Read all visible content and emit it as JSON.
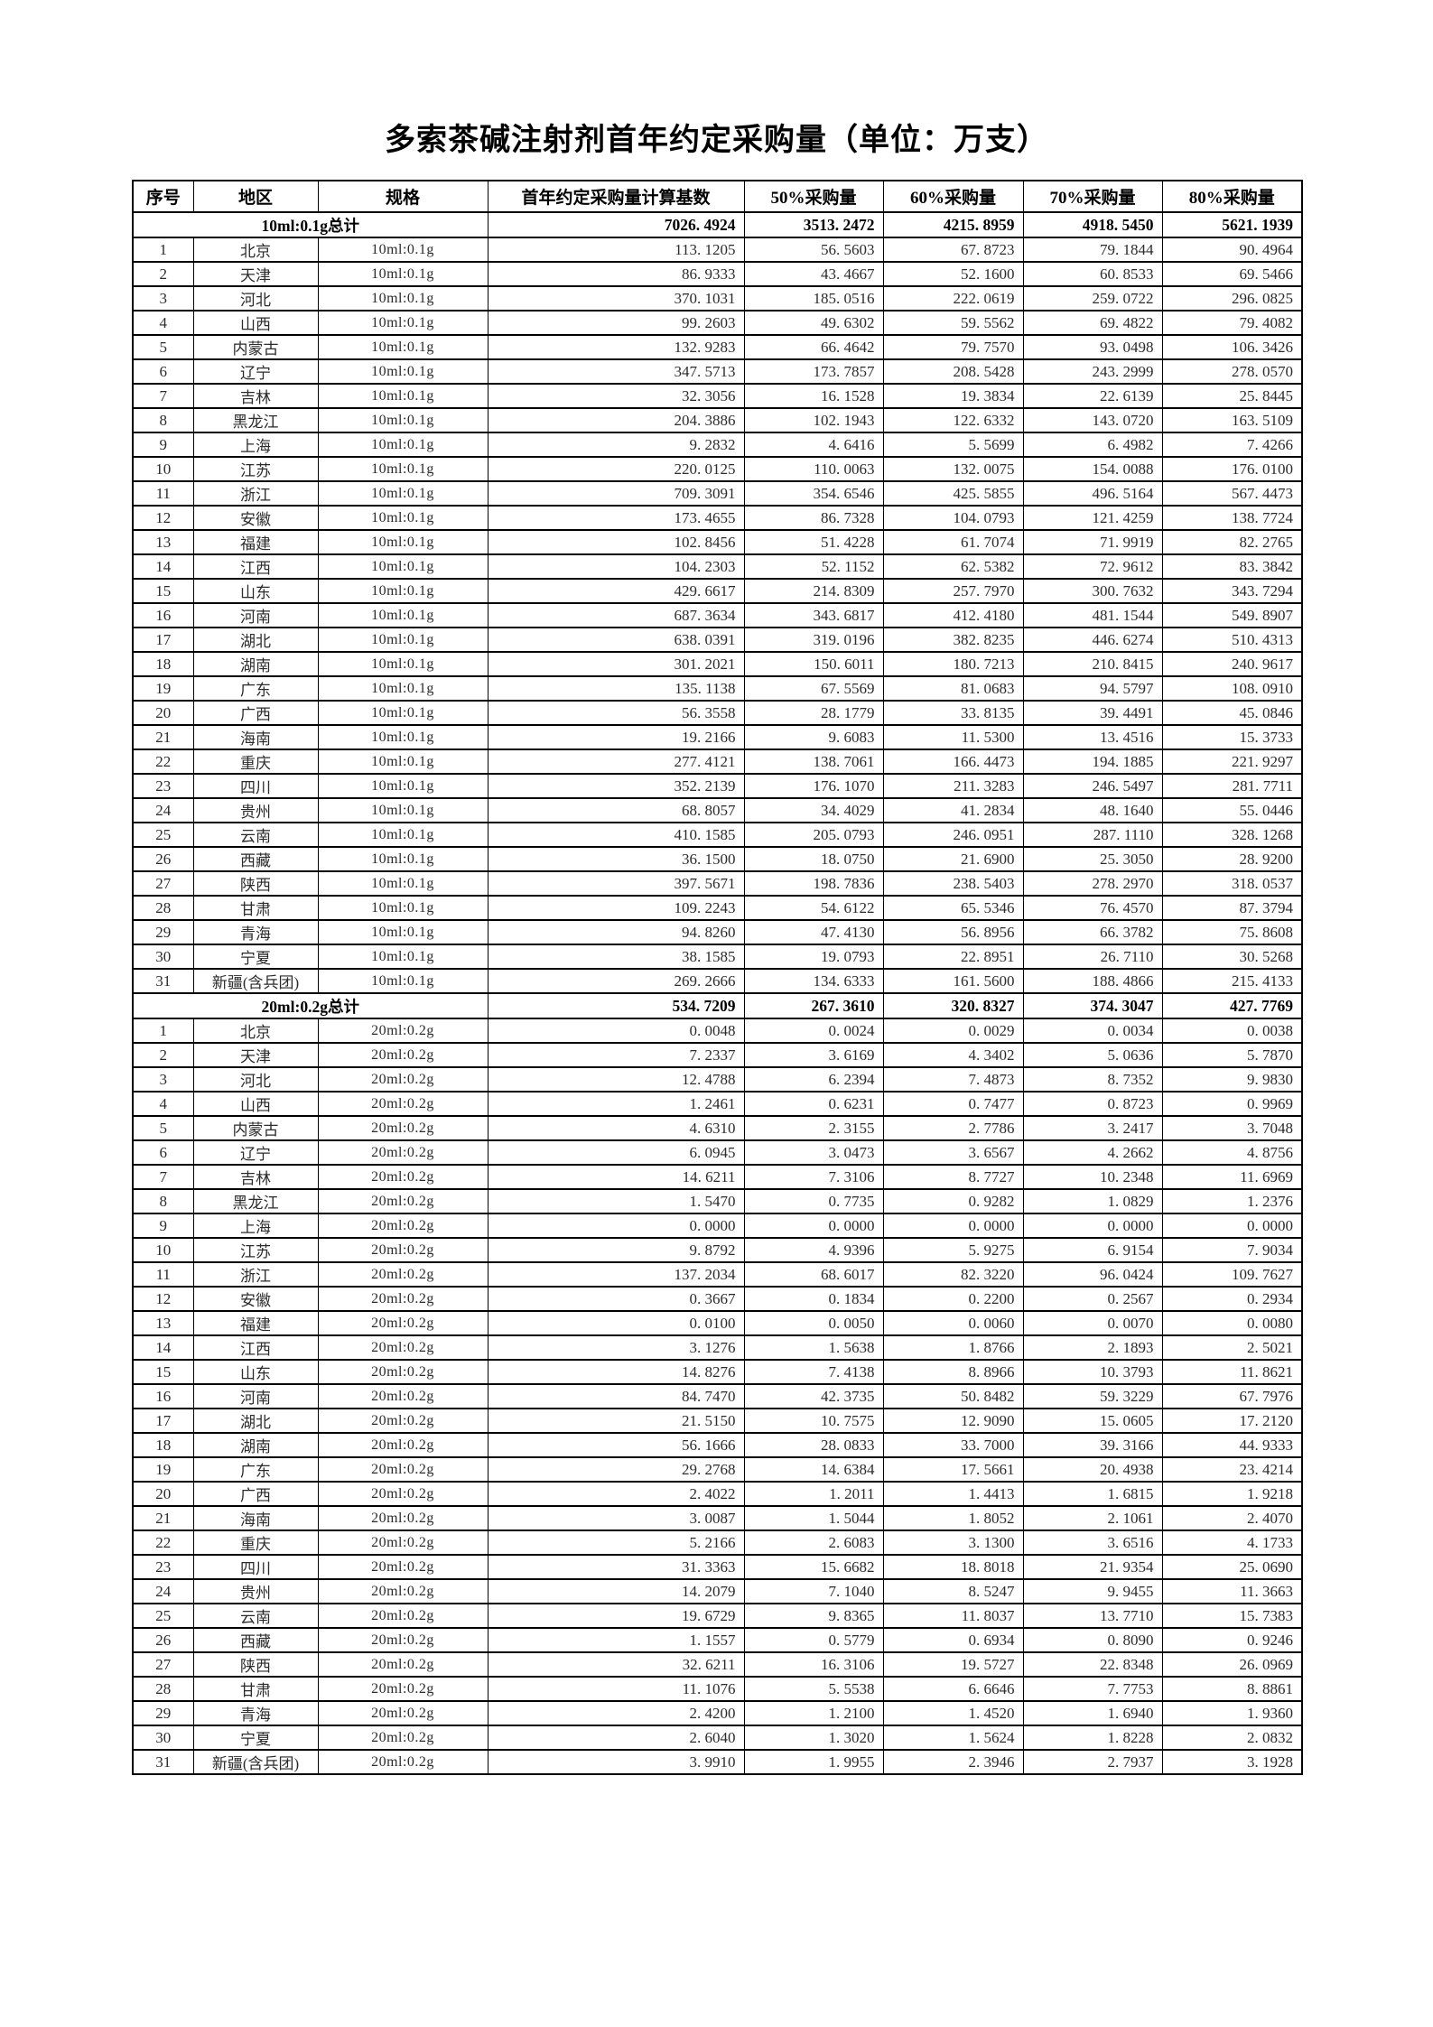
{
  "title": "多索茶碱注射剂首年约定采购量（单位：万支）",
  "table": {
    "headers": [
      "序号",
      "地区",
      "规格",
      "首年约定采购量计算基数",
      "50%采购量",
      "60%采购量",
      "70%采购量",
      "80%采购量"
    ],
    "sections": [
      {
        "total_row": {
          "label": "10ml:0.1g总计",
          "values": [
            "7026.4924",
            "3513.2472",
            "4215.8959",
            "4918.5450",
            "5621.1939"
          ]
        },
        "rows": [
          {
            "no": "1",
            "region": "北京",
            "spec": "10ml:0.1g",
            "values": [
              "113.1205",
              "56.5603",
              "67.8723",
              "79.1844",
              "90.4964"
            ]
          },
          {
            "no": "2",
            "region": "天津",
            "spec": "10ml:0.1g",
            "values": [
              "86.9333",
              "43.4667",
              "52.1600",
              "60.8533",
              "69.5466"
            ]
          },
          {
            "no": "3",
            "region": "河北",
            "spec": "10ml:0.1g",
            "values": [
              "370.1031",
              "185.0516",
              "222.0619",
              "259.0722",
              "296.0825"
            ]
          },
          {
            "no": "4",
            "region": "山西",
            "spec": "10ml:0.1g",
            "values": [
              "99.2603",
              "49.6302",
              "59.5562",
              "69.4822",
              "79.4082"
            ]
          },
          {
            "no": "5",
            "region": "内蒙古",
            "spec": "10ml:0.1g",
            "values": [
              "132.9283",
              "66.4642",
              "79.7570",
              "93.0498",
              "106.3426"
            ]
          },
          {
            "no": "6",
            "region": "辽宁",
            "spec": "10ml:0.1g",
            "values": [
              "347.5713",
              "173.7857",
              "208.5428",
              "243.2999",
              "278.0570"
            ]
          },
          {
            "no": "7",
            "region": "吉林",
            "spec": "10ml:0.1g",
            "values": [
              "32.3056",
              "16.1528",
              "19.3834",
              "22.6139",
              "25.8445"
            ]
          },
          {
            "no": "8",
            "region": "黑龙江",
            "spec": "10ml:0.1g",
            "values": [
              "204.3886",
              "102.1943",
              "122.6332",
              "143.0720",
              "163.5109"
            ]
          },
          {
            "no": "9",
            "region": "上海",
            "spec": "10ml:0.1g",
            "values": [
              "9.2832",
              "4.6416",
              "5.5699",
              "6.4982",
              "7.4266"
            ]
          },
          {
            "no": "10",
            "region": "江苏",
            "spec": "10ml:0.1g",
            "values": [
              "220.0125",
              "110.0063",
              "132.0075",
              "154.0088",
              "176.0100"
            ]
          },
          {
            "no": "11",
            "region": "浙江",
            "spec": "10ml:0.1g",
            "values": [
              "709.3091",
              "354.6546",
              "425.5855",
              "496.5164",
              "567.4473"
            ]
          },
          {
            "no": "12",
            "region": "安徽",
            "spec": "10ml:0.1g",
            "values": [
              "173.4655",
              "86.7328",
              "104.0793",
              "121.4259",
              "138.7724"
            ]
          },
          {
            "no": "13",
            "region": "福建",
            "spec": "10ml:0.1g",
            "values": [
              "102.8456",
              "51.4228",
              "61.7074",
              "71.9919",
              "82.2765"
            ]
          },
          {
            "no": "14",
            "region": "江西",
            "spec": "10ml:0.1g",
            "values": [
              "104.2303",
              "52.1152",
              "62.5382",
              "72.9612",
              "83.3842"
            ]
          },
          {
            "no": "15",
            "region": "山东",
            "spec": "10ml:0.1g",
            "values": [
              "429.6617",
              "214.8309",
              "257.7970",
              "300.7632",
              "343.7294"
            ]
          },
          {
            "no": "16",
            "region": "河南",
            "spec": "10ml:0.1g",
            "values": [
              "687.3634",
              "343.6817",
              "412.4180",
              "481.1544",
              "549.8907"
            ]
          },
          {
            "no": "17",
            "region": "湖北",
            "spec": "10ml:0.1g",
            "values": [
              "638.0391",
              "319.0196",
              "382.8235",
              "446.6274",
              "510.4313"
            ]
          },
          {
            "no": "18",
            "region": "湖南",
            "spec": "10ml:0.1g",
            "values": [
              "301.2021",
              "150.6011",
              "180.7213",
              "210.8415",
              "240.9617"
            ]
          },
          {
            "no": "19",
            "region": "广东",
            "spec": "10ml:0.1g",
            "values": [
              "135.1138",
              "67.5569",
              "81.0683",
              "94.5797",
              "108.0910"
            ]
          },
          {
            "no": "20",
            "region": "广西",
            "spec": "10ml:0.1g",
            "values": [
              "56.3558",
              "28.1779",
              "33.8135",
              "39.4491",
              "45.0846"
            ]
          },
          {
            "no": "21",
            "region": "海南",
            "spec": "10ml:0.1g",
            "values": [
              "19.2166",
              "9.6083",
              "11.5300",
              "13.4516",
              "15.3733"
            ]
          },
          {
            "no": "22",
            "region": "重庆",
            "spec": "10ml:0.1g",
            "values": [
              "277.4121",
              "138.7061",
              "166.4473",
              "194.1885",
              "221.9297"
            ]
          },
          {
            "no": "23",
            "region": "四川",
            "spec": "10ml:0.1g",
            "values": [
              "352.2139",
              "176.1070",
              "211.3283",
              "246.5497",
              "281.7711"
            ]
          },
          {
            "no": "24",
            "region": "贵州",
            "spec": "10ml:0.1g",
            "values": [
              "68.8057",
              "34.4029",
              "41.2834",
              "48.1640",
              "55.0446"
            ]
          },
          {
            "no": "25",
            "region": "云南",
            "spec": "10ml:0.1g",
            "values": [
              "410.1585",
              "205.0793",
              "246.0951",
              "287.1110",
              "328.1268"
            ]
          },
          {
            "no": "26",
            "region": "西藏",
            "spec": "10ml:0.1g",
            "values": [
              "36.1500",
              "18.0750",
              "21.6900",
              "25.3050",
              "28.9200"
            ]
          },
          {
            "no": "27",
            "region": "陕西",
            "spec": "10ml:0.1g",
            "values": [
              "397.5671",
              "198.7836",
              "238.5403",
              "278.2970",
              "318.0537"
            ]
          },
          {
            "no": "28",
            "region": "甘肃",
            "spec": "10ml:0.1g",
            "values": [
              "109.2243",
              "54.6122",
              "65.5346",
              "76.4570",
              "87.3794"
            ]
          },
          {
            "no": "29",
            "region": "青海",
            "spec": "10ml:0.1g",
            "values": [
              "94.8260",
              "47.4130",
              "56.8956",
              "66.3782",
              "75.8608"
            ]
          },
          {
            "no": "30",
            "region": "宁夏",
            "spec": "10ml:0.1g",
            "values": [
              "38.1585",
              "19.0793",
              "22.8951",
              "26.7110",
              "30.5268"
            ]
          },
          {
            "no": "31",
            "region": "新疆(含兵团)",
            "spec": "10ml:0.1g",
            "values": [
              "269.2666",
              "134.6333",
              "161.5600",
              "188.4866",
              "215.4133"
            ]
          }
        ]
      },
      {
        "total_row": {
          "label": "20ml:0.2g总计",
          "values": [
            "534.7209",
            "267.3610",
            "320.8327",
            "374.3047",
            "427.7769"
          ]
        },
        "rows": [
          {
            "no": "1",
            "region": "北京",
            "spec": "20ml:0.2g",
            "values": [
              "0.0048",
              "0.0024",
              "0.0029",
              "0.0034",
              "0.0038"
            ]
          },
          {
            "no": "2",
            "region": "天津",
            "spec": "20ml:0.2g",
            "values": [
              "7.2337",
              "3.6169",
              "4.3402",
              "5.0636",
              "5.7870"
            ]
          },
          {
            "no": "3",
            "region": "河北",
            "spec": "20ml:0.2g",
            "values": [
              "12.4788",
              "6.2394",
              "7.4873",
              "8.7352",
              "9.9830"
            ]
          },
          {
            "no": "4",
            "region": "山西",
            "spec": "20ml:0.2g",
            "values": [
              "1.2461",
              "0.6231",
              "0.7477",
              "0.8723",
              "0.9969"
            ]
          },
          {
            "no": "5",
            "region": "内蒙古",
            "spec": "20ml:0.2g",
            "values": [
              "4.6310",
              "2.3155",
              "2.7786",
              "3.2417",
              "3.7048"
            ]
          },
          {
            "no": "6",
            "region": "辽宁",
            "spec": "20ml:0.2g",
            "values": [
              "6.0945",
              "3.0473",
              "3.6567",
              "4.2662",
              "4.8756"
            ]
          },
          {
            "no": "7",
            "region": "吉林",
            "spec": "20ml:0.2g",
            "values": [
              "14.6211",
              "7.3106",
              "8.7727",
              "10.2348",
              "11.6969"
            ]
          },
          {
            "no": "8",
            "region": "黑龙江",
            "spec": "20ml:0.2g",
            "values": [
              "1.5470",
              "0.7735",
              "0.9282",
              "1.0829",
              "1.2376"
            ]
          },
          {
            "no": "9",
            "region": "上海",
            "spec": "20ml:0.2g",
            "values": [
              "0.0000",
              "0.0000",
              "0.0000",
              "0.0000",
              "0.0000"
            ]
          },
          {
            "no": "10",
            "region": "江苏",
            "spec": "20ml:0.2g",
            "values": [
              "9.8792",
              "4.9396",
              "5.9275",
              "6.9154",
              "7.9034"
            ]
          },
          {
            "no": "11",
            "region": "浙江",
            "spec": "20ml:0.2g",
            "values": [
              "137.2034",
              "68.6017",
              "82.3220",
              "96.0424",
              "109.7627"
            ]
          },
          {
            "no": "12",
            "region": "安徽",
            "spec": "20ml:0.2g",
            "values": [
              "0.3667",
              "0.1834",
              "0.2200",
              "0.2567",
              "0.2934"
            ]
          },
          {
            "no": "13",
            "region": "福建",
            "spec": "20ml:0.2g",
            "values": [
              "0.0100",
              "0.0050",
              "0.0060",
              "0.0070",
              "0.0080"
            ]
          },
          {
            "no": "14",
            "region": "江西",
            "spec": "20ml:0.2g",
            "values": [
              "3.1276",
              "1.5638",
              "1.8766",
              "2.1893",
              "2.5021"
            ]
          },
          {
            "no": "15",
            "region": "山东",
            "spec": "20ml:0.2g",
            "values": [
              "14.8276",
              "7.4138",
              "8.8966",
              "10.3793",
              "11.8621"
            ]
          },
          {
            "no": "16",
            "region": "河南",
            "spec": "20ml:0.2g",
            "values": [
              "84.7470",
              "42.3735",
              "50.8482",
              "59.3229",
              "67.7976"
            ]
          },
          {
            "no": "17",
            "region": "湖北",
            "spec": "20ml:0.2g",
            "values": [
              "21.5150",
              "10.7575",
              "12.9090",
              "15.0605",
              "17.2120"
            ]
          },
          {
            "no": "18",
            "region": "湖南",
            "spec": "20ml:0.2g",
            "values": [
              "56.1666",
              "28.0833",
              "33.7000",
              "39.3166",
              "44.9333"
            ]
          },
          {
            "no": "19",
            "region": "广东",
            "spec": "20ml:0.2g",
            "values": [
              "29.2768",
              "14.6384",
              "17.5661",
              "20.4938",
              "23.4214"
            ]
          },
          {
            "no": "20",
            "region": "广西",
            "spec": "20ml:0.2g",
            "values": [
              "2.4022",
              "1.2011",
              "1.4413",
              "1.6815",
              "1.9218"
            ]
          },
          {
            "no": "21",
            "region": "海南",
            "spec": "20ml:0.2g",
            "values": [
              "3.0087",
              "1.5044",
              "1.8052",
              "2.1061",
              "2.4070"
            ]
          },
          {
            "no": "22",
            "region": "重庆",
            "spec": "20ml:0.2g",
            "values": [
              "5.2166",
              "2.6083",
              "3.1300",
              "3.6516",
              "4.1733"
            ]
          },
          {
            "no": "23",
            "region": "四川",
            "spec": "20ml:0.2g",
            "values": [
              "31.3363",
              "15.6682",
              "18.8018",
              "21.9354",
              "25.0690"
            ]
          },
          {
            "no": "24",
            "region": "贵州",
            "spec": "20ml:0.2g",
            "values": [
              "14.2079",
              "7.1040",
              "8.5247",
              "9.9455",
              "11.3663"
            ]
          },
          {
            "no": "25",
            "region": "云南",
            "spec": "20ml:0.2g",
            "values": [
              "19.6729",
              "9.8365",
              "11.8037",
              "13.7710",
              "15.7383"
            ]
          },
          {
            "no": "26",
            "region": "西藏",
            "spec": "20ml:0.2g",
            "values": [
              "1.1557",
              "0.5779",
              "0.6934",
              "0.8090",
              "0.9246"
            ]
          },
          {
            "no": "27",
            "region": "陕西",
            "spec": "20ml:0.2g",
            "values": [
              "32.6211",
              "16.3106",
              "19.5727",
              "22.8348",
              "26.0969"
            ]
          },
          {
            "no": "28",
            "region": "甘肃",
            "spec": "20ml:0.2g",
            "values": [
              "11.1076",
              "5.5538",
              "6.6646",
              "7.7753",
              "8.8861"
            ]
          },
          {
            "no": "29",
            "region": "青海",
            "spec": "20ml:0.2g",
            "values": [
              "2.4200",
              "1.2100",
              "1.4520",
              "1.6940",
              "1.9360"
            ]
          },
          {
            "no": "30",
            "region": "宁夏",
            "spec": "20ml:0.2g",
            "values": [
              "2.6040",
              "1.3020",
              "1.5624",
              "1.8228",
              "2.0832"
            ]
          },
          {
            "no": "31",
            "region": "新疆(含兵团)",
            "spec": "20ml:0.2g",
            "values": [
              "3.9910",
              "1.9955",
              "2.3946",
              "2.7937",
              "3.1928"
            ]
          }
        ]
      }
    ]
  }
}
